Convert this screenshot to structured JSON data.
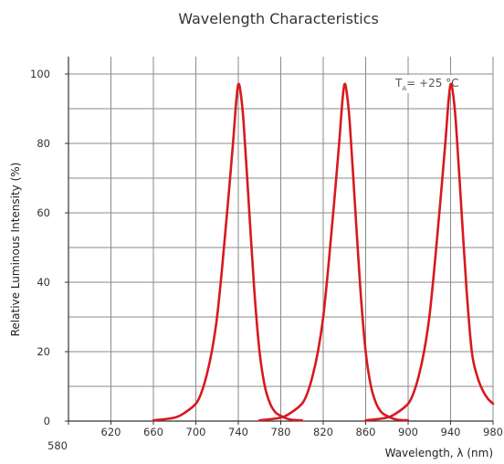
{
  "chart_data": {
    "type": "line",
    "title": "Wavelength Characteristics",
    "xlabel": "Wavelength, λ (nm)",
    "ylabel": "Relative Luminous Intensity (%)",
    "xlim": [
      580,
      980
    ],
    "ylim": [
      0,
      105
    ],
    "x_ticks": [
      "580",
      "620",
      "660",
      "700",
      "740",
      "780",
      "820",
      "860",
      "900",
      "940",
      "980"
    ],
    "y_ticks": [
      "0",
      "20",
      "40",
      "60",
      "80",
      "100"
    ],
    "grid": true,
    "annotation": {
      "main": "T",
      "sub": "A",
      "rest": "= +25 °C"
    },
    "line_color": "#d7191f",
    "series": [
      {
        "x": [
          660,
          680,
          690,
          700,
          705,
          710,
          715,
          720,
          725,
          730,
          735,
          738,
          740,
          742,
          745,
          750,
          755,
          760,
          765,
          770,
          775,
          780,
          785,
          790,
          800
        ],
        "y": [
          0.2,
          1,
          2.5,
          5,
          8,
          13,
          20,
          30,
          45,
          62,
          80,
          92,
          97,
          95,
          86,
          62,
          38,
          20,
          10,
          5,
          2.5,
          1.5,
          0.8,
          0.4,
          0.2
        ]
      },
      {
        "x": [
          760,
          780,
          790,
          800,
          805,
          810,
          815,
          820,
          825,
          830,
          835,
          838,
          840,
          842,
          845,
          850,
          855,
          860,
          865,
          870,
          875,
          880,
          885,
          890,
          900
        ],
        "y": [
          0.2,
          1,
          2.5,
          5,
          8,
          13,
          20,
          30,
          45,
          62,
          80,
          92,
          97,
          95,
          86,
          62,
          38,
          20,
          10,
          5,
          2.5,
          1.5,
          0.8,
          0.4,
          0.2
        ]
      },
      {
        "x": [
          860,
          880,
          890,
          900,
          905,
          910,
          915,
          920,
          925,
          930,
          935,
          938,
          940,
          942,
          945,
          950,
          955,
          960,
          965,
          970,
          975,
          980
        ],
        "y": [
          0.2,
          1,
          2.5,
          5,
          8,
          13,
          20,
          30,
          45,
          62,
          80,
          92,
          97,
          95,
          86,
          62,
          38,
          20,
          13,
          9,
          6.5,
          5
        ]
      }
    ]
  }
}
